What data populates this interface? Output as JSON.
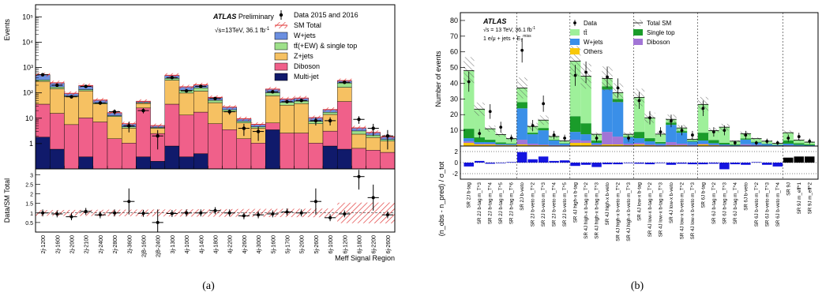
{
  "panel_a": {
    "caption": "(a)",
    "atlas": "ATLAS",
    "atlas_suffix": "Preliminary",
    "energy": "√s=13TeV, 36.1 fb",
    "energy_sup": "-1",
    "y_label_top": "Events",
    "y_label_bottom": "Data/SM Total",
    "x_label": "Meff Signal Region",
    "legend": [
      {
        "key": "data",
        "label": "Data 2015 and 2016"
      },
      {
        "key": "sm",
        "label": "SM Total"
      },
      {
        "key": "wjets",
        "label": "W+jets"
      },
      {
        "key": "ttbar",
        "label": "tt̄(+EW) & single top"
      },
      {
        "key": "zjets",
        "label": "Z+jets"
      },
      {
        "key": "diboson",
        "label": "Diboson"
      },
      {
        "key": "multijet",
        "label": "Multi-jet"
      }
    ],
    "y_ticks": [
      "1",
      "10",
      "10²",
      "10³",
      "10⁴",
      "10⁵"
    ],
    "ratio_ticks": [
      "0.5",
      "1",
      "1.5",
      "2",
      "2.5",
      "3"
    ]
  },
  "panel_b": {
    "caption": "(b)",
    "atlas": "ATLAS",
    "energy": "√s = 13 TeV, 36.1 fb",
    "energy_sup": "-1",
    "selection": "1 e/μ + jets + E",
    "selection_sub": "T",
    "selection_sup": "miss",
    "y_label_top": "Number of events",
    "y_label_bottom": "(n_obs - n_pred) / σ_tot",
    "legend": [
      {
        "key": "data",
        "label": "Data"
      },
      {
        "key": "sm",
        "label": "Total SM"
      },
      {
        "key": "ttbar",
        "label": "tt̄"
      },
      {
        "key": "singletop",
        "label": "Single top"
      },
      {
        "key": "wjets",
        "label": "W+jets"
      },
      {
        "key": "diboson",
        "label": "Diboson"
      },
      {
        "key": "others",
        "label": "Others"
      }
    ],
    "y_ticks": [
      "10",
      "20",
      "30",
      "40",
      "50",
      "60",
      "70",
      "80"
    ],
    "pull_ticks": [
      "-2",
      "0",
      "2"
    ]
  },
  "colors": {
    "wjets_a": "#6b8fe0",
    "ttbar_a": "#9ee08a",
    "zjets": "#f6c162",
    "diboson_a": "#f0608a",
    "multijet": "#101a6b",
    "ttbar_b": "#9ef09a",
    "singletop": "#1a9c2a",
    "wjets_b": "#3a8fe8",
    "diboson_b": "#a275d6",
    "others": "#f8c80a",
    "pull": "#1515e0",
    "band": "#e03030"
  },
  "chart_data": [
    {
      "type": "bar",
      "title": "",
      "ylabel": "Events",
      "xlabel": "Meff Signal Region",
      "yscale": "log",
      "ylim": [
        0.1,
        300000
      ],
      "categories": [
        "2j-1200",
        "2j-1600",
        "2j-2000",
        "2j-2100",
        "2j-2400",
        "2j-2800",
        "2j-3600",
        "2jB-1600",
        "2jB-2400",
        "3j-1300",
        "4j-1000",
        "4j-1400",
        "4j-1800",
        "4j-2200",
        "4j-2600",
        "4j-3000",
        "5j-1600",
        "5j-1700",
        "5j-2000",
        "5j-2600",
        "6j-1000",
        "6j-1200",
        "6j-1800",
        "6j-2200",
        "6j-2600"
      ],
      "series": [
        {
          "name": "Multi-jet",
          "values": [
            1.8,
            0.6,
            0.1,
            0.3,
            0.1,
            0.05,
            0.05,
            0.3,
            0.2,
            0.8,
            0.3,
            0.4,
            0.1,
            0.05,
            0.05,
            0.05,
            3.5,
            0.1,
            0.1,
            0.05,
            0.8,
            0.6,
            0.05,
            0.05,
            0.05
          ]
        },
        {
          "name": "Diboson",
          "values": [
            34,
            15,
            5.5,
            10,
            7,
            1.5,
            1,
            25,
            2.3,
            35,
            13,
            17,
            6,
            3.5,
            1.5,
            1,
            3,
            2.5,
            2.5,
            1,
            2.3,
            45,
            0.6,
            0.5,
            0.4
          ]
        },
        {
          "name": "Z+jets",
          "values": [
            250,
            130,
            65,
            110,
            30,
            10,
            3,
            13,
            1.5,
            280,
            85,
            100,
            35,
            15,
            5,
            3,
            70,
            30,
            35,
            5,
            11,
            120,
            1.7,
            1.2,
            0.8
          ]
        },
        {
          "name": "tt̄(+EW) & single top",
          "values": [
            40,
            25,
            5,
            15,
            3,
            1,
            0.5,
            3,
            0.3,
            60,
            30,
            40,
            10,
            3,
            1,
            0.5,
            25,
            10,
            10,
            1.5,
            3,
            80,
            0.8,
            0.4,
            0.2
          ]
        },
        {
          "name": "W+jets",
          "values": [
            200,
            80,
            20,
            60,
            12,
            4,
            1.5,
            5,
            0.8,
            120,
            45,
            50,
            15,
            6,
            2,
            1.2,
            40,
            15,
            15,
            3,
            5,
            60,
            1,
            0.6,
            0.4
          ]
        }
      ],
      "data": [
        520,
        200,
        70,
        180,
        40,
        18,
        5,
        20,
        2,
        400,
        120,
        180,
        60,
        18,
        4,
        3,
        110,
        45,
        50,
        8,
        8,
        260,
        9,
        4,
        2
      ],
      "ratio": [
        1.0,
        0.95,
        0.8,
        1.08,
        0.9,
        1.0,
        1.6,
        0.98,
        0.5,
        0.97,
        1.0,
        1.0,
        1.12,
        1.0,
        0.85,
        0.9,
        0.95,
        1.05,
        1.0,
        1.6,
        0.75,
        0.95,
        2.9,
        1.8,
        0.9
      ]
    },
    {
      "type": "bar",
      "title": "",
      "ylabel": "Number of events",
      "xlabel": "",
      "ylim": [
        0,
        85
      ],
      "categories": [
        "SR 2J b-tag",
        "SR 2J b-tag m_T^3",
        "SR 2J b-tag m_T^4",
        "SR 2J b-tag m_T^5",
        "SR 2J b-tag m_T^6",
        "SR 2J b-veto",
        "SR 2J b-veto m_T^2",
        "SR 2J b-veto m_T^3",
        "SR 2J b-veto m_T^4",
        "SR 2J b-veto m_T^5",
        "SR 4J high-x b-tag",
        "SR 4J high-x b-tag m_T^2",
        "SR 4J high-x b-tag m_T^3",
        "SR 4J high-x b-veto",
        "SR 4J high-x b-veto m_T^2",
        "SR 4J high-x b-veto m_T^3",
        "SR 4J low-x b-tag",
        "SR 4J low-x b-tag m_T^2",
        "SR 4J low-x b-tag m_T^3",
        "SR 4J low-x b-veto",
        "SR 4J low-x b-veto m_T^2",
        "SR 4J low-x b-veto m_T^3",
        "SR 6J b-tag",
        "SR 6J b-tag m_T^2",
        "SR 6J b-tag m_T^3",
        "SR 6J b-tag m_T^4",
        "SR 6J b-veto",
        "SR 6J b-veto m_T^2",
        "SR 6J b-veto m_T^3",
        "SR 6J b-veto m_T^4",
        "SR 9J",
        "SR 9J m_eff^1",
        "SR 9J m_eff^2"
      ],
      "series": [
        {
          "name": "Others",
          "values": [
            2,
            1,
            1,
            0.5,
            0.5,
            1,
            0.5,
            0.5,
            0.3,
            0.3,
            2,
            2,
            0.5,
            1,
            1,
            0.5,
            1,
            0.5,
            0.3,
            0.5,
            0.5,
            0.3,
            1,
            0.5,
            0.3,
            0.2,
            0.3,
            0.2,
            0.1,
            0.1,
            0.3,
            0.2,
            0.1
          ]
        },
        {
          "name": "Diboson",
          "values": [
            1,
            0.5,
            0.5,
            0.3,
            0.2,
            3,
            1,
            0.5,
            0.3,
            0.2,
            2,
            1.5,
            0.5,
            8,
            5,
            1,
            1,
            0.5,
            0.3,
            2,
            1,
            0.5,
            0.5,
            0.3,
            0.2,
            0.1,
            0.8,
            0.5,
            0.2,
            0.1,
            0.2,
            0.1,
            0.1
          ]
        },
        {
          "name": "W+jets",
          "values": [
            2,
            1,
            1,
            0.5,
            0.5,
            20,
            6,
            9,
            3,
            1,
            5,
            4,
            1,
            27,
            22,
            4,
            3,
            2,
            1,
            11,
            7,
            2,
            2,
            1,
            0.5,
            0.3,
            3,
            1.5,
            1,
            0.5,
            1,
            0.5,
            0.3
          ]
        },
        {
          "name": "Single top",
          "values": [
            6,
            3,
            1.5,
            1,
            0.5,
            4,
            1,
            1.5,
            0.5,
            0.3,
            10,
            7,
            1.5,
            2,
            2,
            0.5,
            4,
            2,
            1,
            1.5,
            1,
            0.5,
            5,
            2,
            1,
            0.5,
            0.8,
            0.5,
            0.3,
            0.2,
            2,
            1,
            0.5
          ]
        },
        {
          "name": "tt̄",
          "values": [
            37,
            18,
            7,
            5,
            3,
            9,
            4,
            5,
            2,
            1.5,
            35,
            30,
            4,
            5,
            4,
            1.5,
            22,
            13,
            5,
            2,
            2,
            1,
            18,
            6,
            10,
            2,
            3,
            2,
            1.5,
            0.8,
            5,
            2,
            1.5
          ]
        }
      ],
      "data": [
        41,
        8,
        22,
        12,
        5,
        61,
        13,
        27,
        7,
        5,
        45,
        47,
        5,
        44,
        37,
        5,
        29,
        18,
        9,
        16,
        10,
        7,
        24,
        9,
        10,
        2,
        7,
        2,
        3,
        2,
        5,
        6,
        3
      ],
      "pull": [
        -0.7,
        0.3,
        -0.2,
        -0.1,
        0.1,
        1.9,
        0.6,
        1.1,
        0.3,
        0.4,
        -0.6,
        -0.4,
        -0.8,
        -0.3,
        -0.3,
        -0.1,
        -0.2,
        -0.3,
        -0.1,
        -0.4,
        -0.2,
        -0.3,
        -0.3,
        -0.2,
        -1.2,
        -0.3,
        -0.4,
        0.1,
        -0.4,
        -0.7,
        0.9,
        1.1,
        1.1
      ]
    }
  ]
}
